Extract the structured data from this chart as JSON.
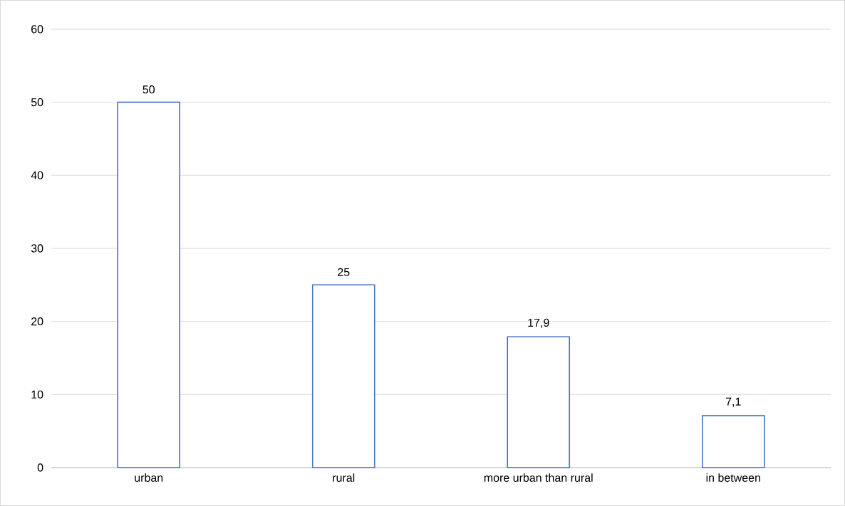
{
  "chart_data": {
    "type": "bar",
    "categories": [
      "urban",
      "rural",
      "more urban than rural",
      "in between"
    ],
    "values": [
      50,
      25,
      17.9,
      7.1
    ],
    "value_labels": [
      "50",
      "25",
      "17,9",
      "7,1"
    ],
    "color": "#4472c4",
    "ylim": [
      0,
      60
    ],
    "yticks": [
      0,
      10,
      20,
      30,
      40,
      50,
      60
    ],
    "grid": "y"
  }
}
